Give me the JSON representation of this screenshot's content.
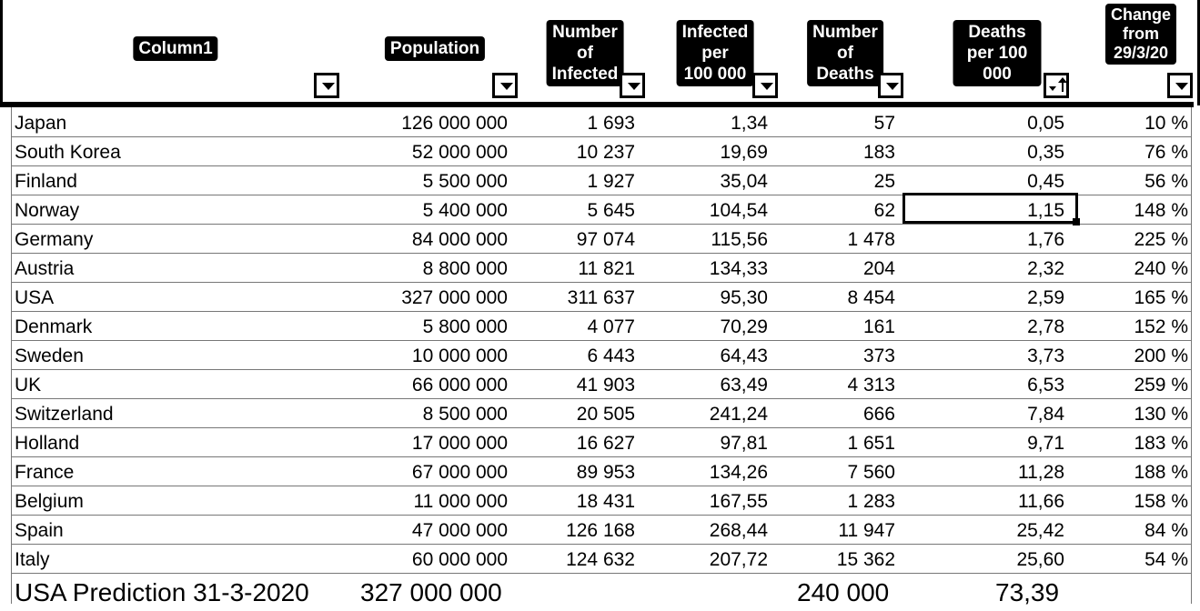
{
  "headers": {
    "col1": "Column1",
    "population": "Population",
    "infected": "Number of\nInfected",
    "infected_per": "Infected per\n100 000",
    "deaths": "Number of\nDeaths",
    "deaths_per": "Deaths per 100\n000",
    "change": "Change\nfrom\n29/3/20"
  },
  "rows": [
    {
      "country": "Japan",
      "population": "126 000 000",
      "infected": "1 693",
      "infected_per": "1,34",
      "deaths": "57",
      "deaths_per": "0,05",
      "change": "10 %"
    },
    {
      "country": "South Korea",
      "population": "52 000 000",
      "infected": "10 237",
      "infected_per": "19,69",
      "deaths": "183",
      "deaths_per": "0,35",
      "change": "76 %"
    },
    {
      "country": "Finland",
      "population": "5 500 000",
      "infected": "1 927",
      "infected_per": "35,04",
      "deaths": "25",
      "deaths_per": "0,45",
      "change": "56 %"
    },
    {
      "country": "Norway",
      "population": "5 400 000",
      "infected": "5 645",
      "infected_per": "104,54",
      "deaths": "62",
      "deaths_per": "1,15",
      "change": "148 %"
    },
    {
      "country": "Germany",
      "population": "84 000 000",
      "infected": "97 074",
      "infected_per": "115,56",
      "deaths": "1 478",
      "deaths_per": "1,76",
      "change": "225 %"
    },
    {
      "country": "Austria",
      "population": "8 800 000",
      "infected": "11 821",
      "infected_per": "134,33",
      "deaths": "204",
      "deaths_per": "2,32",
      "change": "240 %"
    },
    {
      "country": "USA",
      "population": "327 000 000",
      "infected": "311 637",
      "infected_per": "95,30",
      "deaths": "8 454",
      "deaths_per": "2,59",
      "change": "165 %"
    },
    {
      "country": "Denmark",
      "population": "5 800 000",
      "infected": "4 077",
      "infected_per": "70,29",
      "deaths": "161",
      "deaths_per": "2,78",
      "change": "152 %"
    },
    {
      "country": "Sweden",
      "population": "10 000 000",
      "infected": "6 443",
      "infected_per": "64,43",
      "deaths": "373",
      "deaths_per": "3,73",
      "change": "200 %"
    },
    {
      "country": "UK",
      "population": "66 000 000",
      "infected": "41 903",
      "infected_per": "63,49",
      "deaths": "4 313",
      "deaths_per": "6,53",
      "change": "259 %"
    },
    {
      "country": "Switzerland",
      "population": "8 500 000",
      "infected": "20 505",
      "infected_per": "241,24",
      "deaths": "666",
      "deaths_per": "7,84",
      "change": "130 %"
    },
    {
      "country": "Holland",
      "population": "17 000 000",
      "infected": "16 627",
      "infected_per": "97,81",
      "deaths": "1 651",
      "deaths_per": "9,71",
      "change": "183 %"
    },
    {
      "country": "France",
      "population": "67 000 000",
      "infected": "89 953",
      "infected_per": "134,26",
      "deaths": "7 560",
      "deaths_per": "11,28",
      "change": "188 %"
    },
    {
      "country": "Belgium",
      "population": "11 000 000",
      "infected": "18 431",
      "infected_per": "167,55",
      "deaths": "1 283",
      "deaths_per": "11,66",
      "change": "158 %"
    },
    {
      "country": "Spain",
      "population": "47 000 000",
      "infected": "126 168",
      "infected_per": "268,44",
      "deaths": "11 947",
      "deaths_per": "25,42",
      "change": "84 %"
    },
    {
      "country": "Italy",
      "population": "60 000 000",
      "infected": "124 632",
      "infected_per": "207,72",
      "deaths": "15 362",
      "deaths_per": "25,60",
      "change": "54 %"
    }
  ],
  "prediction": {
    "label": "USA Prediction 31-3-2020",
    "population": "327 000 000",
    "deaths": "240 000",
    "deaths_per": "73,39"
  },
  "icons": {
    "filter": "chevron-down-icon",
    "sort": "sort-ascending-icon"
  }
}
